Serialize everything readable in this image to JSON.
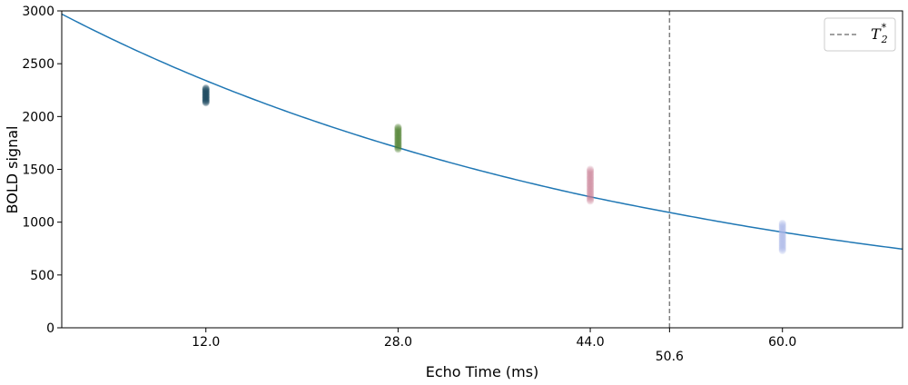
{
  "chart_data": {
    "type": "scatter",
    "xlabel": "Echo Time (ms)",
    "ylabel": "BOLD signal",
    "xlim": [
      0,
      70
    ],
    "ylim": [
      0,
      3000
    ],
    "x_ticks": [
      12.0,
      28.0,
      44.0,
      60.0
    ],
    "x_tick_labels": [
      "12.0",
      "28.0",
      "44.0",
      "60.0"
    ],
    "y_ticks": [
      0,
      500,
      1000,
      1500,
      2000,
      2500,
      3000
    ],
    "y_tick_labels": [
      "0",
      "500",
      "1000",
      "1500",
      "2000",
      "2500",
      "3000"
    ],
    "grid": false,
    "legend": {
      "placement": "top-right",
      "entries": [
        {
          "label": "T",
          "sub": "2",
          "sup": "*"
        }
      ]
    },
    "fit_curve": {
      "color": "#1f77b4",
      "points": [
        {
          "x": 0,
          "y": 2970
        },
        {
          "x": 12,
          "y": 2340
        },
        {
          "x": 28,
          "y": 1705
        },
        {
          "x": 44,
          "y": 1240
        },
        {
          "x": 50.6,
          "y": 1092
        },
        {
          "x": 60,
          "y": 905
        },
        {
          "x": 70,
          "y": 745
        }
      ]
    },
    "series": [
      {
        "x": 12.0,
        "y_min": 2130,
        "y_max": 2270,
        "color": "#1a4a5e"
      },
      {
        "x": 28.0,
        "y_min": 1690,
        "y_max": 1900,
        "color": "#4e7f2f"
      },
      {
        "x": 44.0,
        "y_min": 1200,
        "y_max": 1500,
        "color": "#c97a92"
      },
      {
        "x": 60.0,
        "y_min": 730,
        "y_max": 990,
        "color": "#aab8e6"
      }
    ],
    "t2star_line": {
      "x": 50.6,
      "label": "50.6",
      "color": "#808080"
    }
  }
}
